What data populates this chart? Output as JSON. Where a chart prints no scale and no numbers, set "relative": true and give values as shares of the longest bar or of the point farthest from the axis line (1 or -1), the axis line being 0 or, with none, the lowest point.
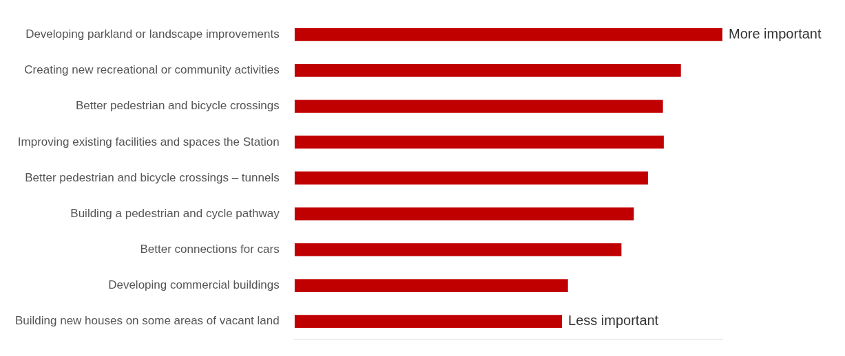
{
  "chart_data": {
    "type": "bar",
    "orientation": "horizontal",
    "relative": true,
    "categories": [
      "Developing parkland or landscape improvements",
      "Creating new recreational or community activities",
      "Better pedestrian and bicycle crossings",
      "Improving existing facilities and spaces the Station",
      "Better pedestrian and bicycle crossings – tunnels",
      "Building a pedestrian and cycle pathway",
      "Better connections for cars",
      "Developing commercial buildings",
      "Building new houses on some areas of vacant land"
    ],
    "values": [
      1,
      0.903,
      0.861,
      0.863,
      0.826,
      0.793,
      0.764,
      0.639,
      0.625
    ],
    "color": "#c00000",
    "annotations": [
      {
        "text": "More important",
        "x": 1,
        "y": "Developing parkland or landscape improvements"
      },
      {
        "text": "Less important",
        "x": 0.625,
        "y": "Building new houses on some areas of vacant land"
      }
    ]
  }
}
